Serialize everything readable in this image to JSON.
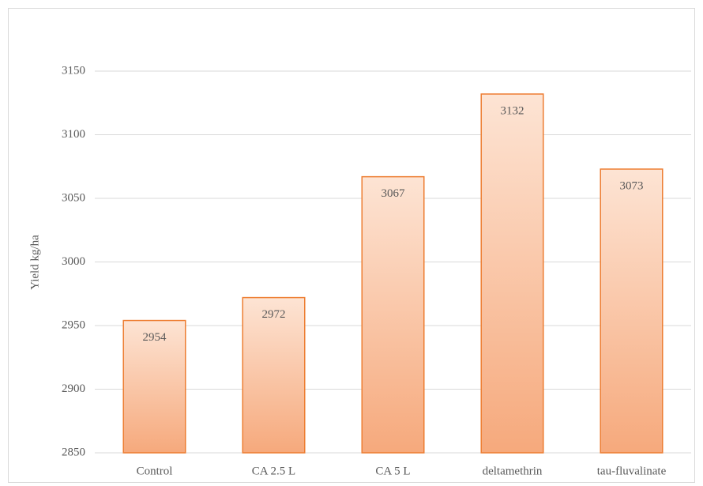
{
  "chart_data": {
    "type": "bar",
    "y_label": "Yield kg/ha",
    "categories": [
      "Control",
      "CA 2.5 L",
      "CA 5 L",
      "deltamethrin",
      "tau-fluvalinate"
    ],
    "values": [
      2954,
      2972,
      3067,
      3132,
      3073
    ],
    "color": "#ed7d31",
    "ylim": [
      2850,
      3150
    ],
    "yticks": [
      2850,
      2900,
      2950,
      3000,
      3050,
      3100,
      3150
    ],
    "grid": true
  }
}
